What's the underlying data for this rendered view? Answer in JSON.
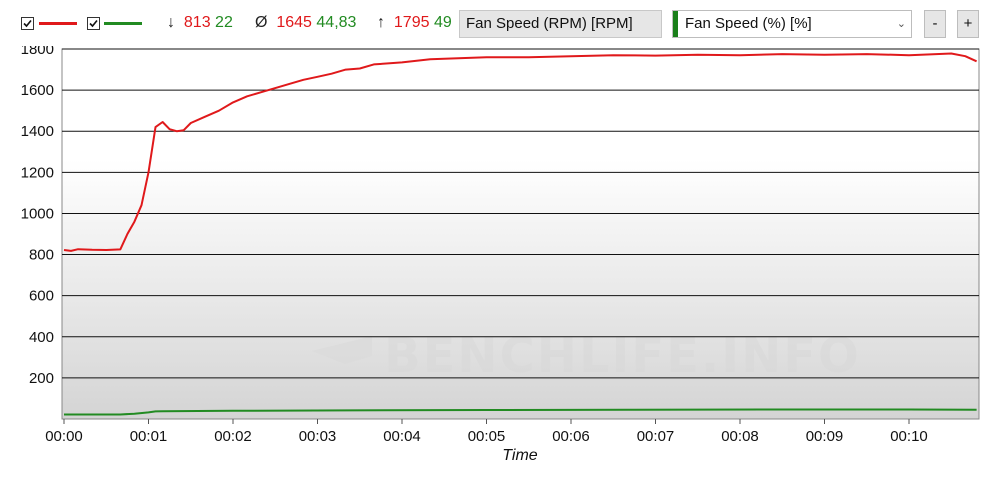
{
  "toolbar": {
    "series1": {
      "checked": true,
      "color": "#e0191b"
    },
    "series2": {
      "checked": true,
      "color": "#228b22"
    },
    "min": {
      "symbol": "↓",
      "value1": "813",
      "value2": "22"
    },
    "avg": {
      "symbol": "Ø",
      "value1": "1645",
      "value2": "44,83"
    },
    "max": {
      "symbol": "↑",
      "value1": "1795",
      "value2": "49"
    },
    "primary_sensor": "Fan Speed (RPM) [RPM]",
    "secondary_sensor": "Fan Speed (%) [%]",
    "secondary_color": "#1a7f1a",
    "zoom_out_label": "-",
    "zoom_in_label": "+"
  },
  "watermark": "BENCHLIFE.INFO",
  "chart_data": {
    "type": "line",
    "xlabel": "Time",
    "ylabel": "",
    "ylim": [
      0,
      1800
    ],
    "yticks": [
      "1800",
      "1600",
      "1400",
      "1200",
      "1000",
      "800",
      "600",
      "400",
      "200"
    ],
    "xticks": [
      "00:00",
      "00:01",
      "00:02",
      "00:03",
      "00:04",
      "00:05",
      "00:06",
      "00:07",
      "00:08",
      "00:09",
      "00:10"
    ],
    "xlim_seconds": [
      0,
      648
    ],
    "grid": true,
    "series": [
      {
        "color": "#e0191b",
        "x": [
          0,
          5,
          10,
          20,
          30,
          40,
          45,
          50,
          55,
          60,
          65,
          70,
          75,
          80,
          85,
          90,
          100,
          110,
          120,
          130,
          140,
          150,
          160,
          170,
          180,
          190,
          200,
          210,
          220,
          240,
          260,
          280,
          300,
          330,
          360,
          390,
          420,
          450,
          480,
          510,
          540,
          570,
          600,
          630,
          640,
          648
        ],
        "y": [
          822,
          818,
          826,
          823,
          822,
          825,
          900,
          960,
          1040,
          1200,
          1420,
          1445,
          1410,
          1400,
          1405,
          1440,
          1470,
          1500,
          1540,
          1570,
          1590,
          1610,
          1630,
          1650,
          1665,
          1680,
          1700,
          1705,
          1725,
          1735,
          1750,
          1755,
          1760,
          1760,
          1765,
          1770,
          1768,
          1772,
          1770,
          1775,
          1772,
          1775,
          1770,
          1778,
          1765,
          1740
        ]
      },
      {
        "color": "#228b22",
        "x": [
          0,
          40,
          50,
          60,
          65,
          70,
          120,
          200,
          300,
          400,
          500,
          600,
          648
        ],
        "y": [
          22,
          22,
          26,
          32,
          37,
          38,
          40,
          42,
          44,
          45,
          46,
          46,
          45
        ]
      }
    ]
  }
}
